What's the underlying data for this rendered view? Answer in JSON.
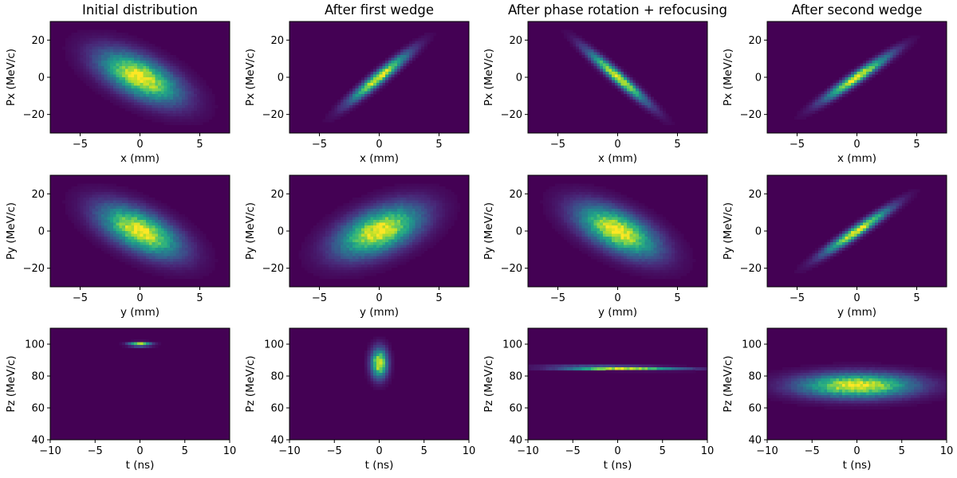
{
  "colors": {
    "colormap": "viridis",
    "background": "#440154",
    "peak": "#fde725"
  },
  "chart_data": [
    {
      "type": "heatmap",
      "title": "Initial distribution",
      "xlabel": "x (mm)",
      "ylabel": "Px (MeV/c)",
      "xlim": [
        -7.5,
        7.5
      ],
      "ylim": [
        -30,
        30
      ],
      "xticks": [
        -5,
        0,
        5
      ],
      "yticks": [
        -20,
        0,
        20
      ],
      "distribution": {
        "center_x": 0,
        "center_y": 0,
        "sigma_x": 2.2,
        "sigma_y": 9,
        "correlation": -0.6
      }
    },
    {
      "type": "heatmap",
      "title": "After first wedge",
      "xlabel": "x (mm)",
      "ylabel": "Px (MeV/c)",
      "xlim": [
        -7.5,
        7.5
      ],
      "ylim": [
        -30,
        30
      ],
      "xticks": [
        -5,
        0,
        5
      ],
      "yticks": [
        -20,
        0,
        20
      ],
      "distribution": {
        "center_x": 0,
        "center_y": 0,
        "sigma_x": 1.6,
        "sigma_y": 8.5,
        "correlation": 0.95
      }
    },
    {
      "type": "heatmap",
      "title": "After phase rotation + refocusing",
      "xlabel": "x (mm)",
      "ylabel": "Px (MeV/c)",
      "xlim": [
        -7.5,
        7.5
      ],
      "ylim": [
        -30,
        30
      ],
      "xticks": [
        -5,
        0,
        5
      ],
      "yticks": [
        -20,
        0,
        20
      ],
      "distribution": {
        "center_x": 0,
        "center_y": 0,
        "sigma_x": 1.6,
        "sigma_y": 9,
        "correlation": -0.96
      }
    },
    {
      "type": "heatmap",
      "title": "After second wedge",
      "xlabel": "x (mm)",
      "ylabel": "Px (MeV/c)",
      "xlim": [
        -7.5,
        7.5
      ],
      "ylim": [
        -30,
        30
      ],
      "xticks": [
        -5,
        0,
        5
      ],
      "yticks": [
        -20,
        0,
        20
      ],
      "distribution": {
        "center_x": 0,
        "center_y": 0,
        "sigma_x": 1.8,
        "sigma_y": 8,
        "correlation": 0.96
      }
    },
    {
      "type": "heatmap",
      "title": "",
      "xlabel": "y (mm)",
      "ylabel": "Py (MeV/c)",
      "xlim": [
        -7.5,
        7.5
      ],
      "ylim": [
        -30,
        30
      ],
      "xticks": [
        -5,
        0,
        5
      ],
      "yticks": [
        -20,
        0,
        20
      ],
      "distribution": {
        "center_x": 0,
        "center_y": 0,
        "sigma_x": 2.2,
        "sigma_y": 9,
        "correlation": -0.6
      }
    },
    {
      "type": "heatmap",
      "title": "",
      "xlabel": "y (mm)",
      "ylabel": "Py (MeV/c)",
      "xlim": [
        -7.5,
        7.5
      ],
      "ylim": [
        -30,
        30
      ],
      "xticks": [
        -5,
        0,
        5
      ],
      "yticks": [
        -20,
        0,
        20
      ],
      "distribution": {
        "center_x": 0,
        "center_y": 0,
        "sigma_x": 2.3,
        "sigma_y": 9,
        "correlation": 0.5
      }
    },
    {
      "type": "heatmap",
      "title": "",
      "xlabel": "y (mm)",
      "ylabel": "Py (MeV/c)",
      "xlim": [
        -7.5,
        7.5
      ],
      "ylim": [
        -30,
        30
      ],
      "xticks": [
        -5,
        0,
        5
      ],
      "yticks": [
        -20,
        0,
        20
      ],
      "distribution": {
        "center_x": 0,
        "center_y": 0,
        "sigma_x": 2.2,
        "sigma_y": 9,
        "correlation": -0.6
      }
    },
    {
      "type": "heatmap",
      "title": "",
      "xlabel": "y (mm)",
      "ylabel": "Py (MeV/c)",
      "xlim": [
        -7.5,
        7.5
      ],
      "ylim": [
        -30,
        30
      ],
      "xticks": [
        -5,
        0,
        5
      ],
      "yticks": [
        -20,
        0,
        20
      ],
      "distribution": {
        "center_x": 0,
        "center_y": 0,
        "sigma_x": 1.8,
        "sigma_y": 8,
        "correlation": 0.96
      }
    },
    {
      "type": "heatmap",
      "title": "",
      "xlabel": "t (ns)",
      "ylabel": "Pz (MeV/c)",
      "xlim": [
        -10,
        10
      ],
      "ylim": [
        40,
        110
      ],
      "xticks": [
        -10,
        -5,
        0,
        5,
        10
      ],
      "yticks": [
        40,
        60,
        80,
        100
      ],
      "distribution": {
        "center_x": 0,
        "center_y": 100,
        "sigma_x": 0.8,
        "sigma_y": 0.8,
        "correlation": 0
      }
    },
    {
      "type": "heatmap",
      "title": "",
      "xlabel": "t (ns)",
      "ylabel": "Pz (MeV/c)",
      "xlim": [
        -10,
        10
      ],
      "ylim": [
        40,
        110
      ],
      "xticks": [
        -10,
        -5,
        0,
        5,
        10
      ],
      "yticks": [
        40,
        60,
        80,
        100
      ],
      "distribution": {
        "center_x": 0,
        "center_y": 88,
        "sigma_x": 0.6,
        "sigma_y": 6,
        "correlation": 0
      }
    },
    {
      "type": "heatmap",
      "title": "",
      "xlabel": "t (ns)",
      "ylabel": "Pz (MeV/c)",
      "xlim": [
        -10,
        10
      ],
      "ylim": [
        40,
        110
      ],
      "xticks": [
        -10,
        -5,
        0,
        5,
        10
      ],
      "yticks": [
        40,
        60,
        80,
        100
      ],
      "distribution": {
        "center_x": 0,
        "center_y": 85,
        "sigma_x": 4.5,
        "sigma_y": 0.8,
        "correlation": -0.3
      }
    },
    {
      "type": "heatmap",
      "title": "",
      "xlabel": "t (ns)",
      "ylabel": "Pz (MeV/c)",
      "xlim": [
        -10,
        10
      ],
      "ylim": [
        40,
        110
      ],
      "xticks": [
        -10,
        -5,
        0,
        5,
        10
      ],
      "yticks": [
        40,
        60,
        80,
        100
      ],
      "distribution": {
        "center_x": 0,
        "center_y": 74,
        "sigma_x": 4.2,
        "sigma_y": 5,
        "correlation": 0
      }
    }
  ]
}
